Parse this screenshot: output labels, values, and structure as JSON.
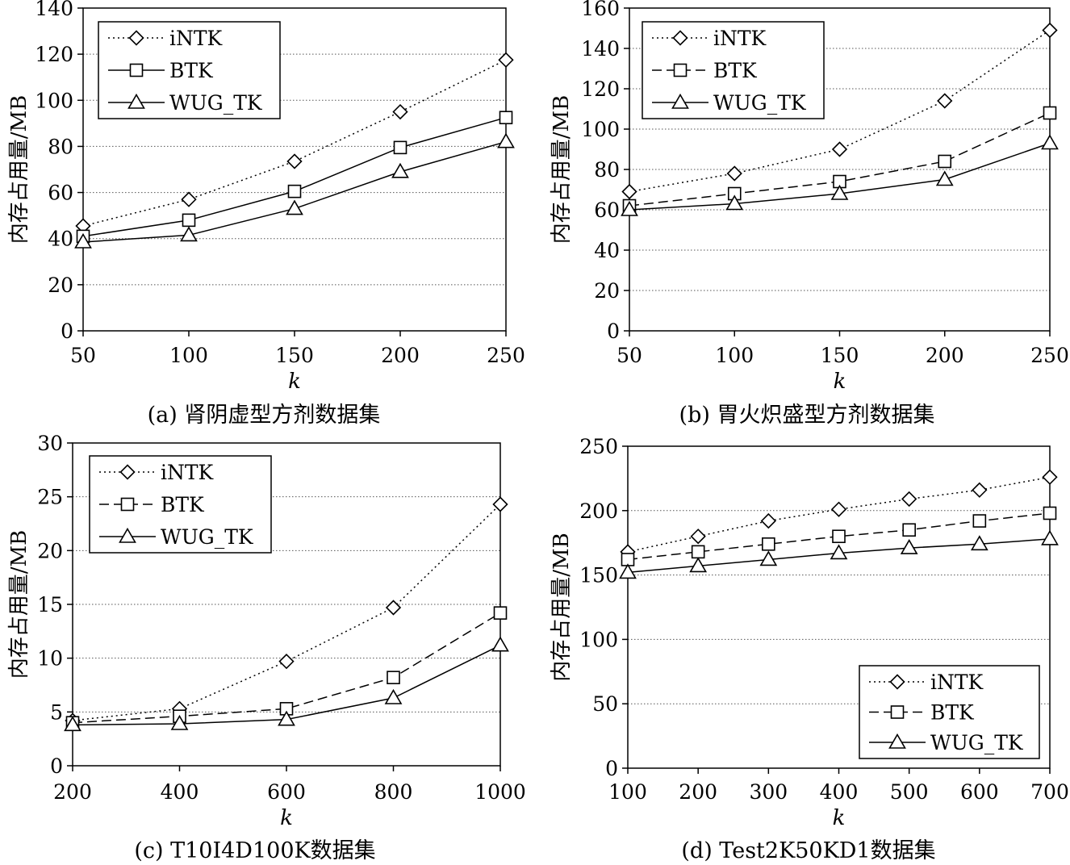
{
  "chart_data": [
    {
      "type": "line",
      "caption": "(a) 肾阴虚型方剂数据集",
      "xlabel": "k",
      "ylabel": "内存占用量/MB",
      "x": [
        50,
        100,
        150,
        200,
        250
      ],
      "xlim": [
        50,
        250
      ],
      "ylim": [
        0,
        140
      ],
      "yticks": [
        0,
        20,
        40,
        60,
        80,
        100,
        120,
        140
      ],
      "grid": true,
      "legend_position": "top-left",
      "series": [
        {
          "name": "iNTK",
          "marker": "diamond",
          "line": "dotted",
          "values": [
            45.5,
            57,
            73.5,
            95,
            117.5
          ]
        },
        {
          "name": "BTK",
          "marker": "square",
          "line": "solid",
          "values": [
            41,
            48,
            60.5,
            79.5,
            92.5
          ]
        },
        {
          "name": "WUG_TK",
          "marker": "triangle",
          "line": "solid",
          "values": [
            38.5,
            41.5,
            53,
            69,
            82
          ]
        }
      ]
    },
    {
      "type": "line",
      "caption": "(b) 胃火炽盛型方剂数据集",
      "xlabel": "k",
      "ylabel": "内存占用量/MB",
      "x": [
        50,
        100,
        150,
        200,
        250
      ],
      "xlim": [
        50,
        250
      ],
      "ylim": [
        0,
        160
      ],
      "yticks": [
        0,
        20,
        40,
        60,
        80,
        100,
        120,
        140,
        160
      ],
      "grid": true,
      "legend_position": "top-left",
      "series": [
        {
          "name": "iNTK",
          "marker": "diamond",
          "line": "dotted",
          "values": [
            69,
            78,
            90,
            114,
            149
          ]
        },
        {
          "name": "BTK",
          "marker": "square",
          "line": "dashed",
          "values": [
            62,
            68,
            74,
            84,
            108
          ]
        },
        {
          "name": "WUG_TK",
          "marker": "triangle",
          "line": "solid",
          "values": [
            60,
            63,
            68,
            75,
            93
          ]
        }
      ]
    },
    {
      "type": "line",
      "caption": "(c) T10I4D100K数据集",
      "xlabel": "k",
      "ylabel": "内存占用量/MB",
      "x": [
        200,
        400,
        600,
        800,
        1000
      ],
      "xlim": [
        200,
        1000
      ],
      "ylim": [
        0,
        30
      ],
      "yticks": [
        0,
        5,
        10,
        15,
        20,
        25,
        30
      ],
      "grid": true,
      "legend_position": "top-left",
      "series": [
        {
          "name": "iNTK",
          "marker": "diamond",
          "line": "dotted",
          "values": [
            4.2,
            5.3,
            9.7,
            14.7,
            24.3
          ]
        },
        {
          "name": "BTK",
          "marker": "square",
          "line": "dashed",
          "values": [
            4,
            4.6,
            5.3,
            8.2,
            14.2
          ]
        },
        {
          "name": "WUG_TK",
          "marker": "triangle",
          "line": "solid",
          "values": [
            3.8,
            3.9,
            4.3,
            6.3,
            11.2
          ]
        }
      ]
    },
    {
      "type": "line",
      "caption": "(d) Test2K50KD1数据集",
      "xlabel": "k",
      "ylabel": "内存占用量/MB",
      "x": [
        100,
        200,
        300,
        400,
        500,
        600,
        700
      ],
      "xlim": [
        100,
        700
      ],
      "ylim": [
        0,
        250
      ],
      "yticks": [
        0,
        50,
        100,
        150,
        200,
        250
      ],
      "grid": true,
      "legend_position": "bottom-right",
      "series": [
        {
          "name": "iNTK",
          "marker": "diamond",
          "line": "dotted",
          "values": [
            168,
            180,
            192,
            201,
            209,
            216,
            226
          ]
        },
        {
          "name": "BTK",
          "marker": "square",
          "line": "dashed",
          "values": [
            162,
            168,
            174,
            180,
            185,
            192,
            198
          ]
        },
        {
          "name": "WUG_TK",
          "marker": "triangle",
          "line": "solid",
          "values": [
            152,
            157,
            162,
            167,
            171,
            174,
            178
          ]
        }
      ]
    }
  ]
}
